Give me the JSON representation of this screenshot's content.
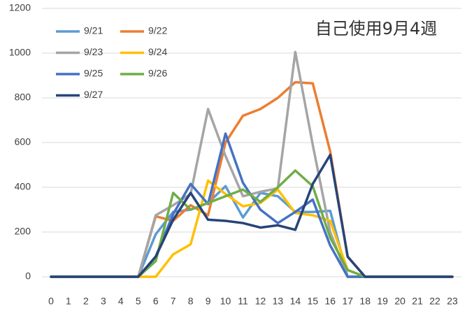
{
  "chart_data": {
    "type": "line",
    "title": "自己使用9月4週",
    "categories": [
      "0",
      "1",
      "2",
      "3",
      "4",
      "5",
      "6",
      "7",
      "8",
      "9",
      "10",
      "11",
      "12",
      "13",
      "14",
      "15",
      "16",
      "17",
      "18",
      "19",
      "20",
      "21",
      "22",
      "23"
    ],
    "series": [
      {
        "name": "9/21",
        "color": "#5B9BD5",
        "values": [
          0,
          0,
          0,
          0,
          0,
          0,
          190,
          290,
          300,
          330,
          405,
          265,
          375,
          360,
          290,
          290,
          295,
          0,
          0,
          0,
          0,
          0,
          0,
          0
        ]
      },
      {
        "name": "9/22",
        "color": "#ED7D31",
        "values": [
          0,
          0,
          0,
          0,
          0,
          0,
          270,
          250,
          320,
          275,
          600,
          720,
          750,
          800,
          870,
          865,
          560,
          90,
          0,
          0,
          0,
          0,
          0,
          0
        ]
      },
      {
        "name": "9/23",
        "color": "#A5A5A5",
        "values": [
          0,
          0,
          0,
          0,
          0,
          0,
          275,
          320,
          370,
          750,
          540,
          360,
          380,
          395,
          1005,
          590,
          200,
          0,
          0,
          0,
          0,
          0,
          0,
          0
        ]
      },
      {
        "name": "9/24",
        "color": "#FFC000",
        "values": [
          0,
          0,
          0,
          0,
          0,
          0,
          0,
          100,
          145,
          430,
          370,
          315,
          330,
          390,
          285,
          275,
          250,
          30,
          0,
          0,
          0,
          0,
          0,
          0
        ]
      },
      {
        "name": "9/25",
        "color": "#4472C4",
        "values": [
          0,
          0,
          0,
          0,
          0,
          0,
          90,
          280,
          415,
          325,
          640,
          420,
          300,
          240,
          290,
          345,
          140,
          0,
          0,
          0,
          0,
          0,
          0,
          0
        ]
      },
      {
        "name": "9/26",
        "color": "#70AD47",
        "values": [
          0,
          0,
          0,
          0,
          0,
          0,
          70,
          375,
          300,
          330,
          360,
          390,
          335,
          400,
          475,
          405,
          175,
          30,
          0,
          0,
          0,
          0,
          0,
          0
        ]
      },
      {
        "name": "9/27",
        "color": "#264478",
        "values": [
          0,
          0,
          0,
          0,
          0,
          0,
          90,
          255,
          375,
          255,
          250,
          240,
          220,
          230,
          210,
          415,
          545,
          90,
          0,
          0,
          0,
          0,
          0,
          0
        ]
      }
    ],
    "ylim": [
      0,
      1200
    ],
    "yticks": [
      0,
      200,
      400,
      600,
      800,
      1000,
      1200
    ],
    "grid": true,
    "legend": "upper left"
  }
}
